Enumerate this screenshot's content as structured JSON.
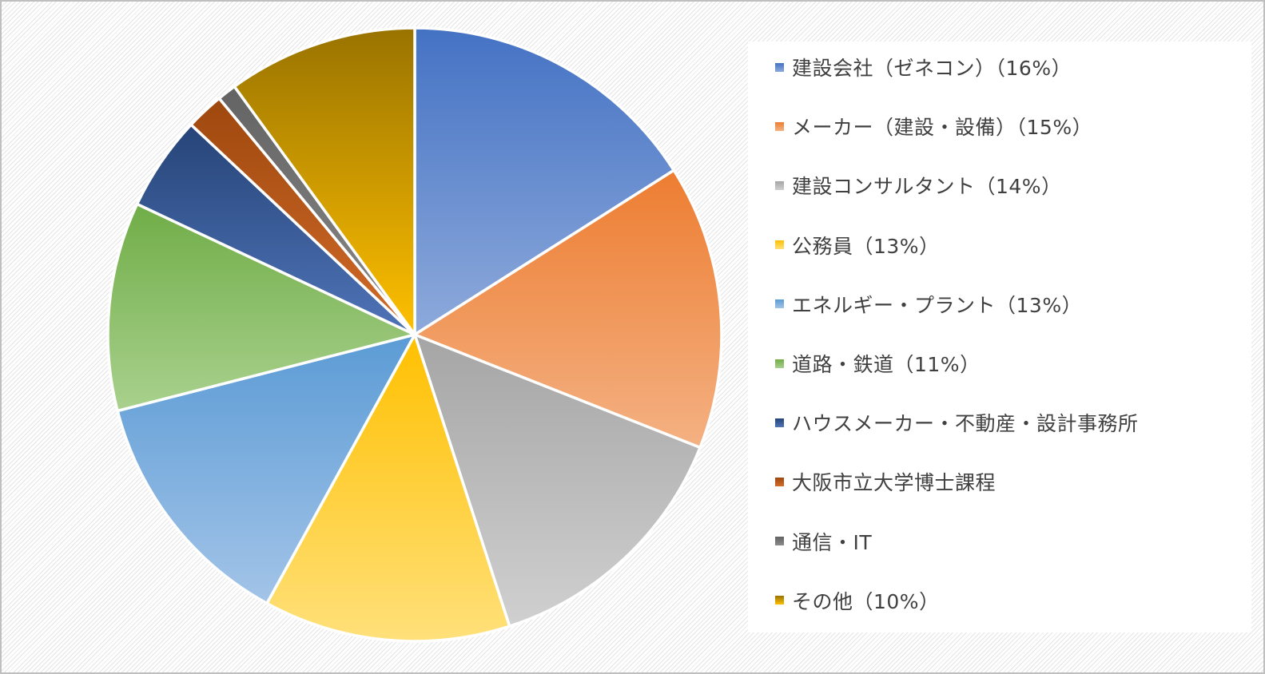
{
  "chart_data": {
    "type": "pie",
    "title": "",
    "legend_position": "right",
    "start_angle": "12 o'clock, clockwise",
    "slices": [
      {
        "label": "建設会社（ゼネコン）（16%）",
        "value": 16,
        "color": "#4472C4",
        "color_light": "#8EAADB"
      },
      {
        "label": "メーカー（建設・設備）（15%）",
        "value": 15,
        "color": "#ED7D31",
        "color_light": "#F4B183"
      },
      {
        "label": "建設コンサルタント（14%）",
        "value": 14,
        "color": "#A5A5A5",
        "color_light": "#D0D0D0"
      },
      {
        "label": "公務員（13%）",
        "value": 13,
        "color": "#FFC000",
        "color_light": "#FFE07A"
      },
      {
        "label": "エネルギー・プラント（13%）",
        "value": 13,
        "color": "#5B9BD5",
        "color_light": "#A3C4E8"
      },
      {
        "label": "道路・鉄道（11%）",
        "value": 11,
        "color": "#70AD47",
        "color_light": "#A9D18E"
      },
      {
        "label": "ハウスメーカー・不動産・設計事務所",
        "value": 5,
        "color": "#264478",
        "color_light": "#4F74B8"
      },
      {
        "label": "大阪市立大学博士課程",
        "value": 2,
        "color": "#9E480E",
        "color_light": "#D26B2A"
      },
      {
        "label": "通信・IT",
        "value": 1,
        "color": "#636363",
        "color_light": "#8A8A8A"
      },
      {
        "label": "その他（10%）",
        "value": 10,
        "color": "#997300",
        "color_light": "#FFC000"
      }
    ]
  }
}
